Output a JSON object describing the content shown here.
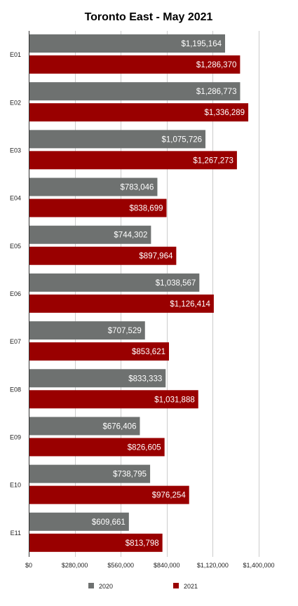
{
  "chart_data": {
    "type": "bar",
    "orientation": "horizontal",
    "title": "Toronto East - May 2021",
    "categories": [
      "E01",
      "E02",
      "E03",
      "E04",
      "E05",
      "E06",
      "E07",
      "E08",
      "E09",
      "E10",
      "E11"
    ],
    "series": [
      {
        "name": "2020",
        "color": "#6e7170",
        "values": [
          1195164,
          1286773,
          1075726,
          783046,
          744302,
          1038567,
          707529,
          833333,
          676406,
          738795,
          609661
        ],
        "labels": [
          "$1,195,164",
          "$1,286,773",
          "$1,075,726",
          "$783,046",
          "$744,302",
          "$1,038,567",
          "$707,529",
          "$833,333",
          "$676,406",
          "$738,795",
          "$609,661"
        ]
      },
      {
        "name": "2021",
        "color": "#990000",
        "values": [
          1286370,
          1336289,
          1267273,
          838699,
          897964,
          1126414,
          853621,
          1031888,
          826605,
          976254,
          813798
        ],
        "labels": [
          "$1,286,370",
          "$1,336,289",
          "$1,267,273",
          "$838,699",
          "$897,964",
          "$1,126,414",
          "$853,621",
          "$1,031,888",
          "$826,605",
          "$976,254",
          "$813,798"
        ]
      }
    ],
    "xlim": [
      0,
      1400000
    ],
    "x_ticks": [
      0,
      280000,
      560000,
      840000,
      1120000,
      1400000
    ],
    "x_tick_labels": [
      "$0",
      "$280,000",
      "$560,000",
      "$840,000",
      "$1,120,000",
      "$1,400,000"
    ],
    "grid": true,
    "legend": "bottom",
    "xlabel": "",
    "ylabel": ""
  }
}
